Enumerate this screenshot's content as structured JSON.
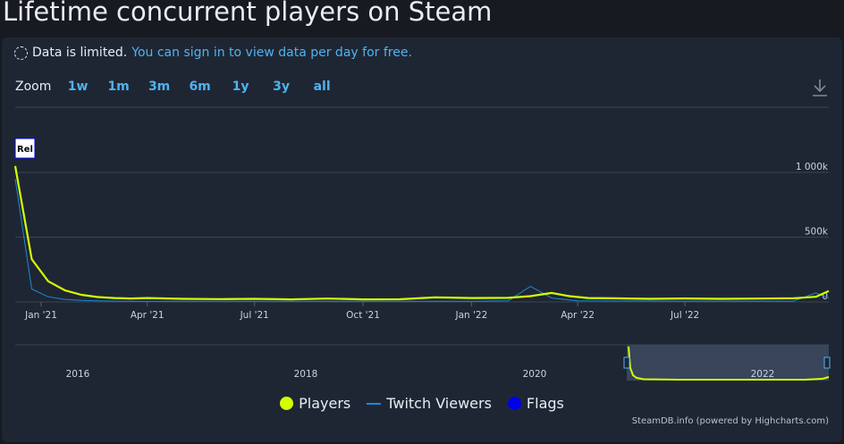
{
  "page": {
    "title": "Lifetime concurrent players on Steam"
  },
  "notice": {
    "text": "Data is limited.",
    "link": "You can sign in to view data per day for free."
  },
  "zoom": {
    "label": "Zoom",
    "buttons": [
      "1w",
      "1m",
      "3m",
      "6m",
      "1y",
      "3y",
      "all"
    ]
  },
  "legend": {
    "items": [
      {
        "label": "Players",
        "color": "#d4ff00"
      },
      {
        "label": "Twitch Viewers",
        "color": "#1a8ad4"
      },
      {
        "label": "Flags",
        "color": "#0000ee"
      }
    ]
  },
  "credits": "SteamDB.info (powered by Highcharts.com)",
  "colors": {
    "background": "#171a21",
    "card": "#1f2633",
    "players": "#d4ff00",
    "twitch": "#1a8ad4",
    "flags": "#0000ee",
    "link": "#4fb3f0"
  },
  "chart_data": {
    "type": "line",
    "title": "Lifetime concurrent players on Steam",
    "x_ticks": [
      "Jan '21",
      "Apr '21",
      "Jul '21",
      "Oct '21",
      "Jan '22",
      "Apr '22",
      "Jul '22"
    ],
    "y_ticks": [
      "0",
      "500k",
      "1 000k"
    ],
    "ylim": [
      0,
      1000000
    ],
    "flag": {
      "label": "Rel"
    },
    "series": [
      {
        "name": "Players",
        "color": "#d4ff00",
        "x": [
          "2020-12-10",
          "2020-12-24",
          "2021-01-07",
          "2021-01-21",
          "2021-02-04",
          "2021-02-18",
          "2021-03-04",
          "2021-03-18",
          "2021-04-01",
          "2021-05-01",
          "2021-06-01",
          "2021-07-01",
          "2021-08-01",
          "2021-09-01",
          "2021-10-01",
          "2021-11-01",
          "2021-12-01",
          "2022-01-01",
          "2022-02-01",
          "2022-02-20",
          "2022-03-10",
          "2022-03-25",
          "2022-04-10",
          "2022-05-01",
          "2022-06-01",
          "2022-07-01",
          "2022-08-01",
          "2022-09-01",
          "2022-10-01",
          "2022-10-20",
          "2022-10-31"
        ],
        "values": [
          1050000,
          330000,
          160000,
          90000,
          55000,
          38000,
          30000,
          27000,
          30000,
          24000,
          22000,
          24000,
          20000,
          26000,
          20000,
          21000,
          35000,
          30000,
          32000,
          45000,
          70000,
          45000,
          30000,
          28000,
          24000,
          27000,
          24000,
          26000,
          28000,
          40000,
          85000
        ]
      },
      {
        "name": "Twitch Viewers",
        "color": "#1a8ad4",
        "x": [
          "2020-12-10",
          "2020-12-24",
          "2021-01-07",
          "2021-01-21",
          "2021-02-04",
          "2021-02-18",
          "2021-03-04",
          "2021-04-01",
          "2021-07-01",
          "2021-10-01",
          "2022-01-01",
          "2022-02-01",
          "2022-02-20",
          "2022-03-10",
          "2022-04-01",
          "2022-07-01",
          "2022-10-01",
          "2022-10-20",
          "2022-10-31"
        ],
        "values": [
          950000,
          100000,
          40000,
          20000,
          12000,
          8000,
          6000,
          5000,
          5000,
          5000,
          5000,
          8000,
          120000,
          30000,
          8000,
          6000,
          6000,
          70000,
          30000
        ]
      }
    ],
    "navigator": {
      "x_ticks": [
        "2016",
        "2018",
        "2020",
        "2022"
      ]
    },
    "grid": true
  }
}
